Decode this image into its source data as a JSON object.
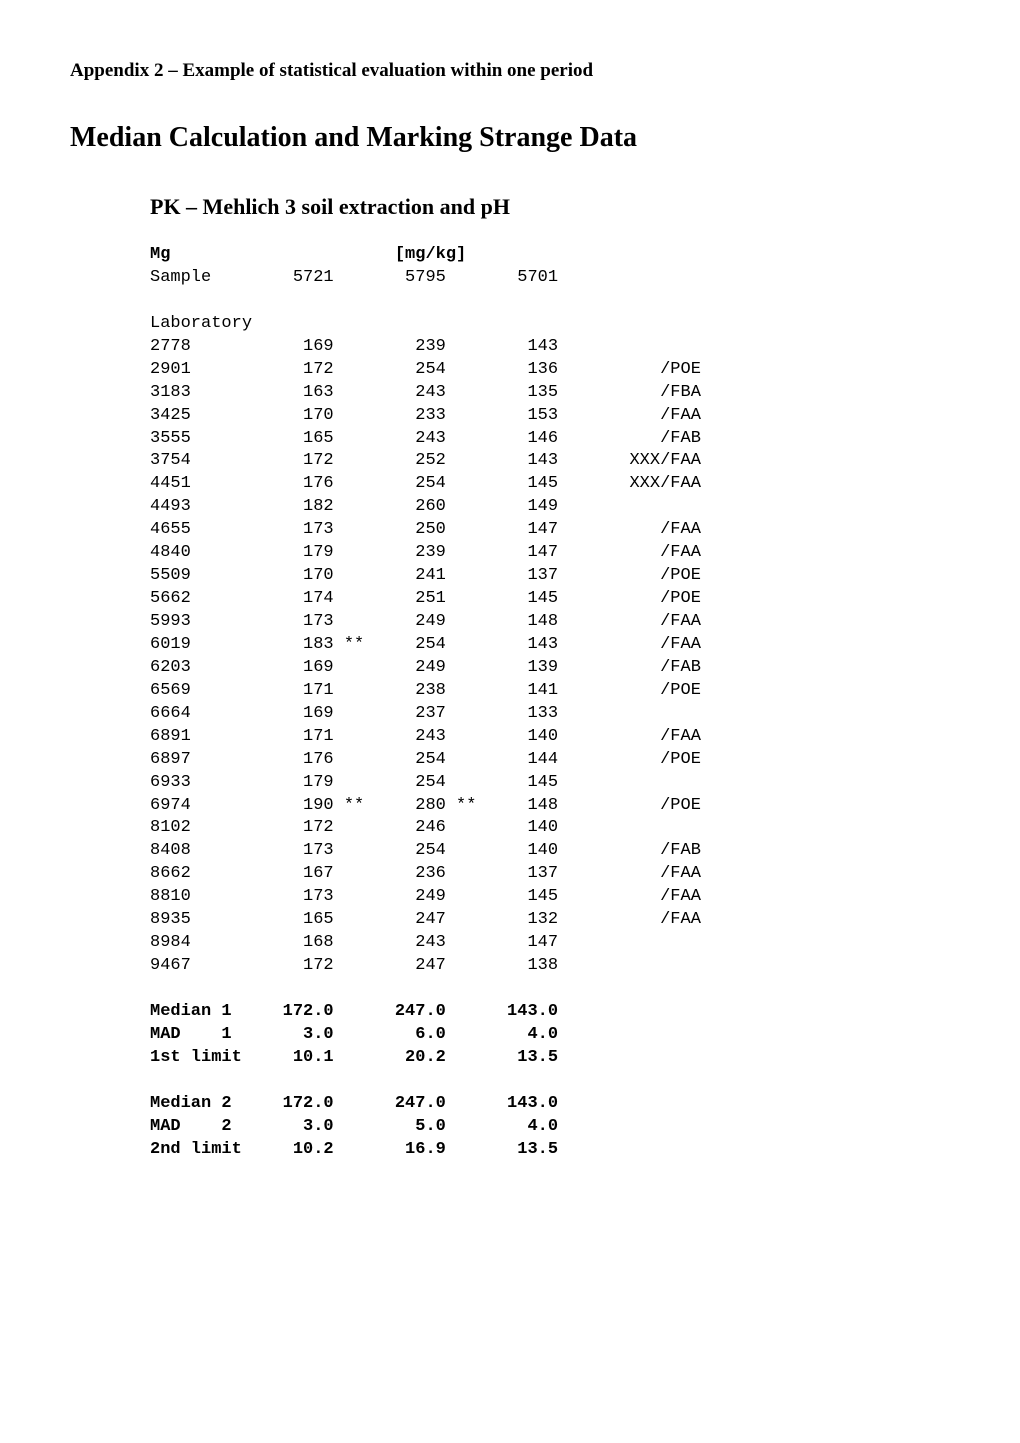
{
  "appendixTitle": "Appendix 2 – Example of statistical evaluation within one period",
  "mainTitle": "Median Calculation and Marking Strange Data",
  "subTitle": "PK – Mehlich 3 soil extraction and pH",
  "header": {
    "param": "Mg",
    "unit": "[mg/kg]",
    "sampleLabel": "Sample",
    "samples": [
      "5721",
      "5795",
      "5701"
    ]
  },
  "labLabel": "Laboratory",
  "rows": [
    {
      "lab": "2778",
      "v": [
        "169",
        "239",
        "143"
      ],
      "m": [
        "",
        "",
        ""
      ],
      "note": ""
    },
    {
      "lab": "2901",
      "v": [
        "172",
        "254",
        "136"
      ],
      "m": [
        "",
        "",
        ""
      ],
      "note": "/POE"
    },
    {
      "lab": "3183",
      "v": [
        "163",
        "243",
        "135"
      ],
      "m": [
        "",
        "",
        ""
      ],
      "note": "/FBA"
    },
    {
      "lab": "3425",
      "v": [
        "170",
        "233",
        "153"
      ],
      "m": [
        "",
        "",
        ""
      ],
      "note": "/FAA"
    },
    {
      "lab": "3555",
      "v": [
        "165",
        "243",
        "146"
      ],
      "m": [
        "",
        "",
        ""
      ],
      "note": "/FAB"
    },
    {
      "lab": "3754",
      "v": [
        "172",
        "252",
        "143"
      ],
      "m": [
        "",
        "",
        ""
      ],
      "note": "XXX/FAA"
    },
    {
      "lab": "4451",
      "v": [
        "176",
        "254",
        "145"
      ],
      "m": [
        "",
        "",
        ""
      ],
      "note": "XXX/FAA"
    },
    {
      "lab": "4493",
      "v": [
        "182",
        "260",
        "149"
      ],
      "m": [
        "",
        "",
        ""
      ],
      "note": ""
    },
    {
      "lab": "4655",
      "v": [
        "173",
        "250",
        "147"
      ],
      "m": [
        "",
        "",
        ""
      ],
      "note": "/FAA"
    },
    {
      "lab": "4840",
      "v": [
        "179",
        "239",
        "147"
      ],
      "m": [
        "",
        "",
        ""
      ],
      "note": "/FAA"
    },
    {
      "lab": "5509",
      "v": [
        "170",
        "241",
        "137"
      ],
      "m": [
        "",
        "",
        ""
      ],
      "note": "/POE"
    },
    {
      "lab": "5662",
      "v": [
        "174",
        "251",
        "145"
      ],
      "m": [
        "",
        "",
        ""
      ],
      "note": "/POE"
    },
    {
      "lab": "5993",
      "v": [
        "173",
        "249",
        "148"
      ],
      "m": [
        "",
        "",
        ""
      ],
      "note": "/FAA"
    },
    {
      "lab": "6019",
      "v": [
        "183",
        "254",
        "143"
      ],
      "m": [
        "**",
        "",
        ""
      ],
      "note": "/FAA"
    },
    {
      "lab": "6203",
      "v": [
        "169",
        "249",
        "139"
      ],
      "m": [
        "",
        "",
        ""
      ],
      "note": "/FAB"
    },
    {
      "lab": "6569",
      "v": [
        "171",
        "238",
        "141"
      ],
      "m": [
        "",
        "",
        ""
      ],
      "note": "/POE"
    },
    {
      "lab": "6664",
      "v": [
        "169",
        "237",
        "133"
      ],
      "m": [
        "",
        "",
        ""
      ],
      "note": ""
    },
    {
      "lab": "6891",
      "v": [
        "171",
        "243",
        "140"
      ],
      "m": [
        "",
        "",
        ""
      ],
      "note": "/FAA"
    },
    {
      "lab": "6897",
      "v": [
        "176",
        "254",
        "144"
      ],
      "m": [
        "",
        "",
        ""
      ],
      "note": "/POE"
    },
    {
      "lab": "6933",
      "v": [
        "179",
        "254",
        "145"
      ],
      "m": [
        "",
        "",
        ""
      ],
      "note": ""
    },
    {
      "lab": "6974",
      "v": [
        "190",
        "280",
        "148"
      ],
      "m": [
        "**",
        "**",
        ""
      ],
      "note": "/POE"
    },
    {
      "lab": "8102",
      "v": [
        "172",
        "246",
        "140"
      ],
      "m": [
        "",
        "",
        ""
      ],
      "note": ""
    },
    {
      "lab": "8408",
      "v": [
        "173",
        "254",
        "140"
      ],
      "m": [
        "",
        "",
        ""
      ],
      "note": "/FAB"
    },
    {
      "lab": "8662",
      "v": [
        "167",
        "236",
        "137"
      ],
      "m": [
        "",
        "",
        ""
      ],
      "note": "/FAA"
    },
    {
      "lab": "8810",
      "v": [
        "173",
        "249",
        "145"
      ],
      "m": [
        "",
        "",
        ""
      ],
      "note": "/FAA"
    },
    {
      "lab": "8935",
      "v": [
        "165",
        "247",
        "132"
      ],
      "m": [
        "",
        "",
        ""
      ],
      "note": "/FAA"
    },
    {
      "lab": "8984",
      "v": [
        "168",
        "243",
        "147"
      ],
      "m": [
        "",
        "",
        ""
      ],
      "note": ""
    },
    {
      "lab": "9467",
      "v": [
        "172",
        "247",
        "138"
      ],
      "m": [
        "",
        "",
        ""
      ],
      "note": ""
    }
  ],
  "stats1": [
    {
      "label": "Median 1",
      "v": [
        "172.0",
        "247.0",
        "143.0"
      ]
    },
    {
      "label": "MAD    1",
      "v": [
        "3.0",
        "6.0",
        "4.0"
      ]
    },
    {
      "label": "1st limit",
      "v": [
        "10.1",
        "20.2",
        "13.5"
      ]
    }
  ],
  "stats2": [
    {
      "label": "Median 2",
      "v": [
        "172.0",
        "247.0",
        "143.0"
      ]
    },
    {
      "label": "MAD    2",
      "v": [
        "3.0",
        "5.0",
        "4.0"
      ]
    },
    {
      "label": "2nd limit",
      "v": [
        "10.2",
        "16.9",
        "13.5"
      ]
    }
  ],
  "colWidths": {
    "lab": 11,
    "val": 8,
    "mark": 3,
    "postVal": 0,
    "note": 11
  }
}
